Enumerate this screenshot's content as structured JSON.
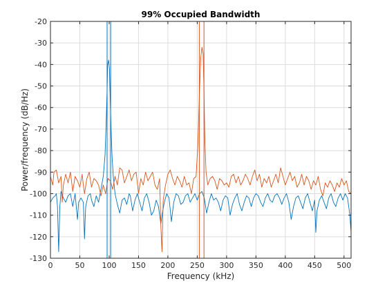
{
  "chart_data": {
    "type": "line",
    "title": "99% Occupied Bandwidth",
    "xlabel": "Frequency (kHz)",
    "ylabel": "Power/frequency (dB/Hz)",
    "xlim": [
      0,
      512
    ],
    "ylim": [
      -130,
      -20
    ],
    "xticks": [
      0,
      50,
      100,
      150,
      200,
      250,
      300,
      350,
      400,
      450,
      500
    ],
    "yticks": [
      -130,
      -120,
      -110,
      -100,
      -90,
      -80,
      -70,
      -60,
      -50,
      -40,
      -30,
      -20
    ],
    "grid": true,
    "colors": {
      "series_1": "#0072BD",
      "series_2": "#D95319",
      "grid": "#dcdcdc",
      "axes": "#262626"
    },
    "series": [
      {
        "color": "#0072BD",
        "peak_center_khz": 99,
        "peak_db": -38,
        "noise_floor_db": -103,
        "bandwidth_markers_khz": [
          96.5,
          102.5
        ],
        "points": [
          [
            0,
            -104
          ],
          [
            4,
            -102
          ],
          [
            8,
            -101
          ],
          [
            10,
            -100
          ],
          [
            12,
            -106
          ],
          [
            14,
            -127
          ],
          [
            16,
            -106
          ],
          [
            18,
            -99
          ],
          [
            22,
            -102
          ],
          [
            26,
            -104
          ],
          [
            30,
            -101
          ],
          [
            34,
            -100
          ],
          [
            38,
            -106
          ],
          [
            42,
            -100
          ],
          [
            46,
            -112
          ],
          [
            48,
            -104
          ],
          [
            52,
            -102
          ],
          [
            56,
            -104
          ],
          [
            58,
            -121
          ],
          [
            60,
            -106
          ],
          [
            64,
            -101
          ],
          [
            68,
            -100
          ],
          [
            70,
            -103
          ],
          [
            74,
            -106
          ],
          [
            78,
            -101
          ],
          [
            82,
            -104
          ],
          [
            86,
            -98
          ],
          [
            90,
            -92
          ],
          [
            93,
            -82
          ],
          [
            95,
            -66
          ],
          [
            96.5,
            -52
          ],
          [
            97.5,
            -40
          ],
          [
            99,
            -38
          ],
          [
            100.5,
            -42
          ],
          [
            102,
            -58
          ],
          [
            103.5,
            -72
          ],
          [
            105,
            -83
          ],
          [
            107,
            -92
          ],
          [
            110,
            -100
          ],
          [
            114,
            -105
          ],
          [
            118,
            -109
          ],
          [
            122,
            -103
          ],
          [
            126,
            -102
          ],
          [
            130,
            -105
          ],
          [
            134,
            -100
          ],
          [
            136,
            -101
          ],
          [
            140,
            -108
          ],
          [
            144,
            -103
          ],
          [
            148,
            -100
          ],
          [
            152,
            -104
          ],
          [
            156,
            -108
          ],
          [
            160,
            -102
          ],
          [
            164,
            -100
          ],
          [
            168,
            -104
          ],
          [
            172,
            -110
          ],
          [
            176,
            -108
          ],
          [
            180,
            -103
          ],
          [
            184,
            -106
          ],
          [
            188,
            -114
          ],
          [
            190,
            -110
          ],
          [
            194,
            -104
          ],
          [
            198,
            -100
          ],
          [
            202,
            -102
          ],
          [
            206,
            -113
          ],
          [
            210,
            -104
          ],
          [
            214,
            -100
          ],
          [
            218,
            -101
          ],
          [
            222,
            -105
          ],
          [
            226,
            -104
          ],
          [
            230,
            -101
          ],
          [
            234,
            -100
          ],
          [
            238,
            -104
          ],
          [
            242,
            -102
          ],
          [
            246,
            -100
          ],
          [
            250,
            -103
          ],
          [
            254,
            -100
          ],
          [
            258,
            -99
          ],
          [
            262,
            -102
          ],
          [
            266,
            -109
          ],
          [
            270,
            -104
          ],
          [
            274,
            -100
          ],
          [
            278,
            -103
          ],
          [
            282,
            -102
          ],
          [
            286,
            -104
          ],
          [
            290,
            -108
          ],
          [
            294,
            -103
          ],
          [
            298,
            -101
          ],
          [
            302,
            -102
          ],
          [
            306,
            -110
          ],
          [
            310,
            -105
          ],
          [
            314,
            -102
          ],
          [
            318,
            -100
          ],
          [
            322,
            -105
          ],
          [
            326,
            -108
          ],
          [
            330,
            -104
          ],
          [
            334,
            -101
          ],
          [
            338,
            -102
          ],
          [
            342,
            -106
          ],
          [
            346,
            -102
          ],
          [
            350,
            -100
          ],
          [
            354,
            -101
          ],
          [
            358,
            -104
          ],
          [
            362,
            -106
          ],
          [
            366,
            -102
          ],
          [
            370,
            -100
          ],
          [
            374,
            -103
          ],
          [
            378,
            -104
          ],
          [
            382,
            -101
          ],
          [
            386,
            -100
          ],
          [
            390,
            -102
          ],
          [
            394,
            -105
          ],
          [
            398,
            -102
          ],
          [
            402,
            -100
          ],
          [
            406,
            -104
          ],
          [
            410,
            -112
          ],
          [
            414,
            -106
          ],
          [
            418,
            -102
          ],
          [
            422,
            -101
          ],
          [
            426,
            -104
          ],
          [
            430,
            -107
          ],
          [
            434,
            -102
          ],
          [
            438,
            -100
          ],
          [
            442,
            -104
          ],
          [
            446,
            -108
          ],
          [
            450,
            -103
          ],
          [
            452,
            -118
          ],
          [
            454,
            -108
          ],
          [
            458,
            -103
          ],
          [
            462,
            -101
          ],
          [
            466,
            -104
          ],
          [
            470,
            -107
          ],
          [
            474,
            -102
          ],
          [
            478,
            -100
          ],
          [
            482,
            -104
          ],
          [
            486,
            -106
          ],
          [
            490,
            -102
          ],
          [
            494,
            -100
          ],
          [
            498,
            -103
          ],
          [
            502,
            -100
          ],
          [
            506,
            -102
          ],
          [
            510,
            -110
          ],
          [
            512,
            -118
          ]
        ]
      },
      {
        "color": "#D95319",
        "peak_center_khz": 258,
        "peak_db": -32,
        "noise_floor_db": -93,
        "bandwidth_markers_khz": [
          253.5,
          261.5
        ],
        "points": [
          [
            0,
            -92
          ],
          [
            4,
            -96
          ],
          [
            6,
            -90
          ],
          [
            10,
            -89
          ],
          [
            14,
            -95
          ],
          [
            18,
            -92
          ],
          [
            20,
            -104
          ],
          [
            22,
            -96
          ],
          [
            26,
            -91
          ],
          [
            30,
            -95
          ],
          [
            34,
            -90
          ],
          [
            38,
            -99
          ],
          [
            42,
            -92
          ],
          [
            46,
            -94
          ],
          [
            50,
            -97
          ],
          [
            54,
            -91
          ],
          [
            56,
            -96
          ],
          [
            58,
            -100
          ],
          [
            62,
            -93
          ],
          [
            66,
            -90
          ],
          [
            70,
            -97
          ],
          [
            74,
            -93
          ],
          [
            78,
            -94
          ],
          [
            82,
            -96
          ],
          [
            86,
            -101
          ],
          [
            90,
            -96
          ],
          [
            94,
            -100
          ],
          [
            98,
            -93
          ],
          [
            102,
            -94
          ],
          [
            106,
            -98
          ],
          [
            110,
            -92
          ],
          [
            114,
            -96
          ],
          [
            118,
            -88
          ],
          [
            122,
            -89
          ],
          [
            126,
            -95
          ],
          [
            130,
            -92
          ],
          [
            134,
            -89
          ],
          [
            138,
            -94
          ],
          [
            142,
            -91
          ],
          [
            146,
            -90
          ],
          [
            150,
            -100
          ],
          [
            154,
            -93
          ],
          [
            158,
            -96
          ],
          [
            162,
            -90
          ],
          [
            166,
            -94
          ],
          [
            170,
            -92
          ],
          [
            174,
            -90
          ],
          [
            178,
            -96
          ],
          [
            182,
            -98
          ],
          [
            186,
            -93
          ],
          [
            188,
            -115
          ],
          [
            190,
            -127
          ],
          [
            192,
            -103
          ],
          [
            196,
            -96
          ],
          [
            200,
            -91
          ],
          [
            204,
            -89
          ],
          [
            208,
            -93
          ],
          [
            212,
            -96
          ],
          [
            216,
            -92
          ],
          [
            220,
            -94
          ],
          [
            224,
            -97
          ],
          [
            228,
            -92
          ],
          [
            232,
            -96
          ],
          [
            236,
            -95
          ],
          [
            240,
            -100
          ],
          [
            244,
            -93
          ],
          [
            248,
            -92
          ],
          [
            251,
            -78
          ],
          [
            253.5,
            -55
          ],
          [
            256,
            -37
          ],
          [
            258,
            -32
          ],
          [
            260,
            -35
          ],
          [
            261.5,
            -52
          ],
          [
            263,
            -75
          ],
          [
            265,
            -90
          ],
          [
            268,
            -96
          ],
          [
            272,
            -93
          ],
          [
            276,
            -92
          ],
          [
            280,
            -94
          ],
          [
            284,
            -98
          ],
          [
            288,
            -93
          ],
          [
            292,
            -94
          ],
          [
            296,
            -96
          ],
          [
            300,
            -95
          ],
          [
            304,
            -97
          ],
          [
            308,
            -92
          ],
          [
            312,
            -91
          ],
          [
            316,
            -95
          ],
          [
            320,
            -92
          ],
          [
            324,
            -96
          ],
          [
            328,
            -94
          ],
          [
            332,
            -91
          ],
          [
            336,
            -93
          ],
          [
            340,
            -96
          ],
          [
            344,
            -92
          ],
          [
            348,
            -89
          ],
          [
            352,
            -94
          ],
          [
            356,
            -91
          ],
          [
            360,
            -97
          ],
          [
            364,
            -93
          ],
          [
            368,
            -95
          ],
          [
            372,
            -92
          ],
          [
            376,
            -97
          ],
          [
            380,
            -94
          ],
          [
            384,
            -91
          ],
          [
            388,
            -95
          ],
          [
            392,
            -88
          ],
          [
            396,
            -92
          ],
          [
            400,
            -96
          ],
          [
            404,
            -93
          ],
          [
            408,
            -90
          ],
          [
            412,
            -94
          ],
          [
            416,
            -92
          ],
          [
            420,
            -97
          ],
          [
            424,
            -95
          ],
          [
            428,
            -91
          ],
          [
            432,
            -96
          ],
          [
            436,
            -92
          ],
          [
            440,
            -94
          ],
          [
            444,
            -98
          ],
          [
            448,
            -94
          ],
          [
            452,
            -96
          ],
          [
            456,
            -92
          ],
          [
            460,
            -98
          ],
          [
            464,
            -101
          ],
          [
            468,
            -95
          ],
          [
            472,
            -97
          ],
          [
            476,
            -94
          ],
          [
            480,
            -96
          ],
          [
            484,
            -99
          ],
          [
            488,
            -95
          ],
          [
            492,
            -97
          ],
          [
            496,
            -93
          ],
          [
            500,
            -96
          ],
          [
            504,
            -94
          ],
          [
            508,
            -99
          ],
          [
            512,
            -100
          ]
        ]
      }
    ]
  }
}
